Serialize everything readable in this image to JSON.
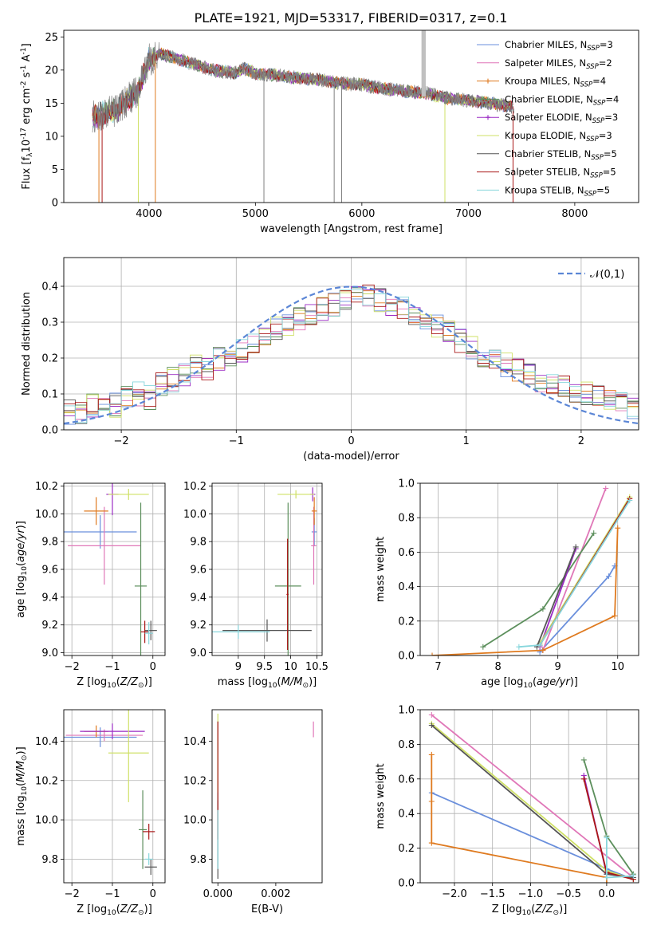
{
  "figure_title": "PLATE=1921, MJD=53317, FIBERID=0317, z=0.1",
  "models": [
    {
      "name": "Chabrier MILES, N$_{SSP}$=3",
      "base": "Chabrier MILES, N",
      "sub": "SSP",
      "tail": "=3",
      "color": "#6a8fdc",
      "marker": "line"
    },
    {
      "name": "Salpeter MILES, N$_{SSP}$=2",
      "base": "Salpeter MILES, N",
      "sub": "SSP",
      "tail": "=2",
      "color": "#e077b8",
      "marker": "line"
    },
    {
      "name": "Kroupa MILES, N$_{SSP}$=4",
      "base": "Kroupa MILES, N",
      "sub": "SSP",
      "tail": "=4",
      "color": "#df7a1f",
      "marker": "plus"
    },
    {
      "name": "Chabrier ELODIE, N$_{SSP}$=4",
      "base": "Chabrier ELODIE, N",
      "sub": "SSP",
      "tail": "=4",
      "color": "#5c8f5c",
      "marker": "plus"
    },
    {
      "name": "Salpeter ELODIE, N$_{SSP}$=3",
      "base": "Salpeter ELODIE, N",
      "sub": "SSP",
      "tail": "=3",
      "color": "#9b2bc4",
      "marker": "plus"
    },
    {
      "name": "Kroupa ELODIE, N$_{SSP}$=3",
      "base": "Kroupa ELODIE, N",
      "sub": "SSP",
      "tail": "=3",
      "color": "#cfe066",
      "marker": "line"
    },
    {
      "name": "Chabrier STELIB, N$_{SSP}$=5",
      "base": "Chabrier STELIB, N",
      "sub": "SSP",
      "tail": "=5",
      "color": "#555555",
      "marker": "line"
    },
    {
      "name": "Salpeter STELIB, N$_{SSP}$=5",
      "base": "Salpeter STELIB, N",
      "sub": "SSP",
      "tail": "=5",
      "color": "#aa1818",
      "marker": "line"
    },
    {
      "name": "Kroupa STELIB, N$_{SSP}$=5",
      "base": "Kroupa STELIB, N",
      "sub": "SSP",
      "tail": "=5",
      "color": "#87d6dc",
      "marker": "line"
    }
  ],
  "chart_data": [
    {
      "id": "spectrum",
      "type": "line",
      "xlabel": "wavelength [Angstrom, rest frame]",
      "ylabel": "Flux [f$_\\lambda$10$^{-17}$ erg cm$^{-2}$ s$^{-1}$ A$^{-1}$]",
      "xlim": [
        3200,
        8600
      ],
      "ylim": [
        0,
        26
      ],
      "xticks": [
        4000,
        5000,
        6000,
        7000,
        8000
      ],
      "yticks": [
        0,
        5,
        10,
        15,
        20,
        25
      ],
      "grid": false,
      "legend": "top-right",
      "data_envelope": {
        "x": [
          3500,
          3600,
          3700,
          3800,
          3900,
          4000,
          4100,
          4200,
          4400,
          4600,
          4800,
          4900,
          5000,
          5200,
          5400,
          5600,
          5800,
          6000,
          6200,
          6400,
          6600,
          6800,
          7000,
          7200,
          7400
        ],
        "y": [
          13,
          13.5,
          14,
          15.5,
          17,
          21.5,
          22.5,
          22,
          21,
          20,
          19.5,
          20.2,
          19.5,
          19.2,
          18.8,
          18.5,
          18,
          17.8,
          17.2,
          16.8,
          16.5,
          15.8,
          15.4,
          15,
          14.5
        ]
      }
    },
    {
      "id": "residuals",
      "type": "histogram",
      "xlabel": "(data-model)/error",
      "ylabel": "Normed distribution",
      "xlim": [
        -2.5,
        2.5
      ],
      "ylim": [
        0,
        0.48
      ],
      "xticks": [
        -2,
        -1,
        0,
        1,
        2
      ],
      "yticks": [
        0.0,
        0.1,
        0.2,
        0.3,
        0.4
      ],
      "grid": true,
      "legend": "top-right",
      "reference_label": "$\\mathcal{N}(0,1)$",
      "bin_start": -2.5,
      "bin_width": 0.1,
      "representative_bins": [
        0.05,
        0.05,
        0.07,
        0.08,
        0.07,
        0.09,
        0.1,
        0.09,
        0.13,
        0.14,
        0.15,
        0.18,
        0.17,
        0.2,
        0.21,
        0.22,
        0.24,
        0.25,
        0.28,
        0.29,
        0.31,
        0.32,
        0.34,
        0.35,
        0.36,
        0.37,
        0.37,
        0.36,
        0.35,
        0.34,
        0.32,
        0.3,
        0.29,
        0.27,
        0.25,
        0.23,
        0.21,
        0.2,
        0.18,
        0.17,
        0.15,
        0.14,
        0.13,
        0.12,
        0.11,
        0.1,
        0.09,
        0.08,
        0.07,
        0.06
      ]
    },
    {
      "id": "age-vs-Z",
      "type": "errorbar",
      "xlabel": "Z [log$_{10}$($Z/Z_\\odot$)]",
      "ylabel": "age  [log$_{10}$($age/yr$)]",
      "xlim": [
        -2.2,
        0.3
      ],
      "ylim": [
        8.98,
        10.22
      ],
      "xticks": [
        -2,
        -1,
        0
      ],
      "yticks": [
        9.0,
        9.2,
        9.4,
        9.6,
        9.8,
        10.0,
        10.2
      ],
      "grid": true,
      "points": [
        {
          "model": 0,
          "x": -1.3,
          "xerr": 0.9,
          "y": 9.87,
          "yerr": 0.12
        },
        {
          "model": 1,
          "x": -1.2,
          "xerr": 0.9,
          "y": 9.77,
          "yerr": 0.28
        },
        {
          "model": 2,
          "x": -1.4,
          "xerr": 0.3,
          "y": 10.02,
          "yerr": 0.1
        },
        {
          "model": 3,
          "x": -0.3,
          "xerr": 0.15,
          "y": 9.48,
          "yerr": 0.6
        },
        {
          "model": 4,
          "x": -1.0,
          "xerr": 0.15,
          "y": 10.14,
          "yerr": 0.15
        },
        {
          "model": 5,
          "x": -0.6,
          "xerr": 0.5,
          "y": 10.14,
          "yerr": 0.04
        },
        {
          "model": 6,
          "x": -0.05,
          "xerr": 0.15,
          "y": 9.16,
          "yerr": 0.07
        },
        {
          "model": 7,
          "x": -0.2,
          "xerr": 0.1,
          "y": 9.15,
          "yerr": 0.08
        },
        {
          "model": 8,
          "x": -0.1,
          "xerr": 0.1,
          "y": 9.14,
          "yerr": 0.08
        }
      ]
    },
    {
      "id": "age-vs-mass",
      "type": "errorbar",
      "xlabel": "mass [log$_{10}$($M/M_\\odot$)]",
      "ylabel": "",
      "xlim": [
        8.5,
        10.6
      ],
      "ylim": [
        8.98,
        10.22
      ],
      "xticks": [
        9.0,
        9.5,
        10.0,
        10.5
      ],
      "yticks": [
        9.0,
        9.2,
        9.4,
        9.6,
        9.8,
        10.0,
        10.2
      ],
      "grid": true,
      "points": [
        {
          "model": 0,
          "x": 10.45,
          "xerr": 0.05,
          "y": 9.87,
          "yerr": 0.1
        },
        {
          "model": 1,
          "x": 10.44,
          "xerr": 0.05,
          "y": 9.77,
          "yerr": 0.28
        },
        {
          "model": 2,
          "x": 10.45,
          "xerr": 0.05,
          "y": 10.02,
          "yerr": 0.1
        },
        {
          "model": 3,
          "x": 9.95,
          "xerr": 0.25,
          "y": 9.48,
          "yerr": 0.6
        },
        {
          "model": 4,
          "x": 10.42,
          "xerr": 0.05,
          "y": 10.14,
          "yerr": 0.05
        },
        {
          "model": 5,
          "x": 10.1,
          "xerr": 0.35,
          "y": 10.14,
          "yerr": 0.03
        },
        {
          "model": 6,
          "x": 9.55,
          "xerr": 0.85,
          "y": 9.16,
          "yerr": 0.08
        },
        {
          "model": 7,
          "x": 9.94,
          "xerr": 0.02,
          "y": 9.42,
          "yerr": 0.4
        },
        {
          "model": 8,
          "x": 9.0,
          "xerr": 0.6,
          "y": 9.15,
          "yerr": 0.05
        }
      ]
    },
    {
      "id": "weight-vs-age",
      "type": "line",
      "xlabel": "age  [log$_{10}$($age/yr$)]",
      "ylabel": "mass weight",
      "xlim": [
        6.7,
        10.35
      ],
      "ylim": [
        0,
        1.0
      ],
      "xticks": [
        7,
        8,
        9,
        10
      ],
      "yticks": [
        0.0,
        0.2,
        0.4,
        0.6,
        0.8,
        1.0
      ],
      "grid": true,
      "series": [
        {
          "model": 0,
          "x": [
            8.7,
            9.85,
            9.95
          ],
          "y": [
            0.02,
            0.46,
            0.52
          ]
        },
        {
          "model": 1,
          "x": [
            8.75,
            9.8
          ],
          "y": [
            0.03,
            0.97
          ]
        },
        {
          "model": 2,
          "x": [
            6.9,
            8.75,
            9.95,
            10.0
          ],
          "y": [
            0.0,
            0.03,
            0.23,
            0.74
          ]
        },
        {
          "model": 3,
          "x": [
            7.75,
            8.75,
            9.6
          ],
          "y": [
            0.05,
            0.27,
            0.71
          ]
        },
        {
          "model": 4,
          "x": [
            8.7,
            9.3
          ],
          "y": [
            0.05,
            0.62
          ]
        },
        {
          "model": 5,
          "x": [
            8.7,
            10.2
          ],
          "y": [
            0.07,
            0.92
          ]
        },
        {
          "model": 6,
          "x": [
            8.65,
            9.3
          ],
          "y": [
            0.05,
            0.63
          ]
        },
        {
          "model": 7,
          "x": [
            8.7,
            10.2
          ],
          "y": [
            0.06,
            0.91
          ]
        },
        {
          "model": 8,
          "x": [
            8.35,
            8.7,
            10.2
          ],
          "y": [
            0.05,
            0.06,
            0.9
          ]
        }
      ]
    },
    {
      "id": "mass-vs-Z",
      "type": "errorbar",
      "xlabel": "Z [log$_{10}$($Z/Z_\\odot$)]",
      "ylabel": "mass [log$_{10}$($M/M_\\odot$)]",
      "xlim": [
        -2.2,
        0.3
      ],
      "ylim": [
        9.68,
        10.56
      ],
      "xticks": [
        -2,
        -1,
        0
      ],
      "yticks": [
        9.8,
        10.0,
        10.2,
        10.4
      ],
      "grid": true,
      "points": [
        {
          "model": 0,
          "x": -1.3,
          "xerr": 0.9,
          "y": 10.42,
          "yerr": 0.05
        },
        {
          "model": 1,
          "x": -1.2,
          "xerr": 0.95,
          "y": 10.43,
          "yerr": 0.03
        },
        {
          "model": 2,
          "x": -1.4,
          "xerr": 0.3,
          "y": 10.45,
          "yerr": 0.03
        },
        {
          "model": 3,
          "x": -0.25,
          "xerr": 0.1,
          "y": 9.95,
          "yerr": 0.2
        },
        {
          "model": 4,
          "x": -1.0,
          "xerr": 0.8,
          "y": 10.45,
          "yerr": 0.04
        },
        {
          "model": 5,
          "x": -0.6,
          "xerr": 0.5,
          "y": 10.34,
          "yerr": 0.25
        },
        {
          "model": 6,
          "x": -0.05,
          "xerr": 0.15,
          "y": 9.76,
          "yerr": 0.04
        },
        {
          "model": 7,
          "x": -0.1,
          "xerr": 0.15,
          "y": 9.94,
          "yerr": 0.04
        },
        {
          "model": 8,
          "x": -0.1,
          "xerr": 0.1,
          "y": 9.8,
          "yerr": 0.03
        }
      ]
    },
    {
      "id": "mass-vs-EBV",
      "type": "errorbar",
      "xlabel": "E(B-V)",
      "ylabel": "",
      "xlim": [
        -0.0002,
        0.0036
      ],
      "ylim": [
        9.68,
        10.56
      ],
      "xticks": [
        0.0,
        0.002
      ],
      "xtick_labels": [
        "0.000",
        "0.002"
      ],
      "yticks": [
        9.8,
        10.0,
        10.2,
        10.4
      ],
      "grid": false,
      "points": [
        {
          "model": 0,
          "x": 0.0,
          "xerr": 0,
          "y": 10.42,
          "yerr": 0.08
        },
        {
          "model": 1,
          "x": 0.0033,
          "xerr": 0,
          "y": 10.46,
          "yerr": 0.04
        },
        {
          "model": 2,
          "x": 0.0,
          "xerr": 0,
          "y": 10.45,
          "yerr": 0.04
        },
        {
          "model": 3,
          "x": 0.0,
          "xerr": 0,
          "y": 10.2,
          "yerr": 0.3
        },
        {
          "model": 4,
          "x": 0.0,
          "xerr": 0,
          "y": 10.45,
          "yerr": 0.04
        },
        {
          "model": 5,
          "x": 0.0,
          "xerr": 0,
          "y": 10.34,
          "yerr": 0.2
        },
        {
          "model": 6,
          "x": 0.0,
          "xerr": 0,
          "y": 9.9,
          "yerr": 0.2
        },
        {
          "model": 7,
          "x": 0.0,
          "xerr": 0,
          "y": 10.2,
          "yerr": 0.3
        },
        {
          "model": 8,
          "x": 0.0,
          "xerr": 0,
          "y": 9.9,
          "yerr": 0.15
        }
      ]
    },
    {
      "id": "weight-vs-Z",
      "type": "line",
      "xlabel": "Z [log$_{10}$($Z/Z_\\odot$)]",
      "ylabel": "mass weight",
      "xlim": [
        -2.45,
        0.42
      ],
      "ylim": [
        0,
        1.0
      ],
      "xticks": [
        -2.0,
        -1.5,
        -1.0,
        -0.5,
        0.0
      ],
      "xtick_labels": [
        "−2.0",
        "−1.5",
        "−1.0",
        "−0.5",
        "0.0"
      ],
      "yticks": [
        0.0,
        0.2,
        0.4,
        0.6,
        0.8,
        1.0
      ],
      "grid": true,
      "series": [
        {
          "model": 0,
          "x": [
            -2.3,
            0.0,
            0.35
          ],
          "y": [
            0.52,
            0.08,
            0.02
          ]
        },
        {
          "model": 1,
          "x": [
            -2.3,
            0.35
          ],
          "y": [
            0.97,
            0.03
          ]
        },
        {
          "model": 2,
          "x": [
            -2.3,
            -2.3,
            -2.3,
            0.0,
            0.0
          ],
          "y": [
            0.74,
            0.47,
            0.23,
            0.03,
            0.0
          ]
        },
        {
          "model": 3,
          "x": [
            -0.3,
            0.0,
            0.35
          ],
          "y": [
            0.71,
            0.27,
            0.05
          ]
        },
        {
          "model": 4,
          "x": [
            -0.3,
            0.0,
            0.35
          ],
          "y": [
            0.62,
            0.05,
            0.03
          ]
        },
        {
          "model": 5,
          "x": [
            -2.3,
            0.0,
            0.35
          ],
          "y": [
            0.92,
            0.07,
            0.02
          ]
        },
        {
          "model": 6,
          "x": [
            -2.3,
            0.0,
            0.35
          ],
          "y": [
            0.91,
            0.05,
            0.03
          ]
        },
        {
          "model": 7,
          "x": [
            -0.3,
            0.0,
            0.35
          ],
          "y": [
            0.6,
            0.06,
            0.02
          ]
        },
        {
          "model": 8,
          "x": [
            0.0,
            0.0,
            0.35
          ],
          "y": [
            0.26,
            0.03,
            0.04
          ]
        }
      ]
    }
  ]
}
